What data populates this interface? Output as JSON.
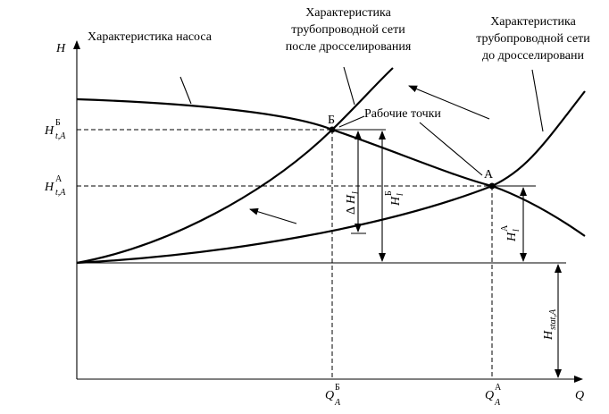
{
  "labels": {
    "pump_char": "Характеристика насоса",
    "after_l1": "Характеристика",
    "after_l2": "трубопроводной сети",
    "after_l3": "после дросселирования",
    "before_l1": "Характеристика",
    "before_l2": "трубопроводной сети",
    "before_l3": "до дросселировани",
    "work_points": "Рабочие точки",
    "point_b": "Б",
    "point_a": "А"
  },
  "axes": {
    "y_label": "H",
    "x_label": "Q"
  },
  "symbols": {
    "H": "H",
    "Q": "Q",
    "sub_tA": "t,A",
    "sub_A": "A",
    "sup_B": "Б",
    "sup_A": "А",
    "delta": "Δ",
    "sub_l": "l",
    "sub_lt": "l",
    "sub_t": "t",
    "sub_statA": "stat,A"
  }
}
